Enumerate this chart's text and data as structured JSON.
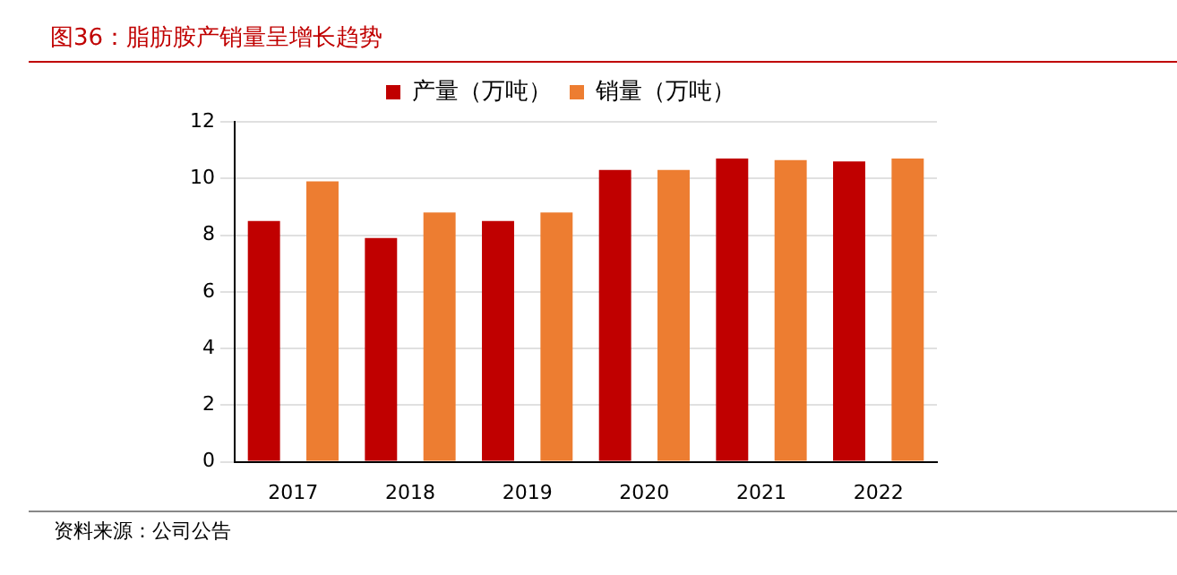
{
  "chart_data": {
    "type": "bar",
    "title": "图36：脂肪胺产销量呈增长趋势",
    "categories": [
      "2017",
      "2018",
      "2019",
      "2020",
      "2021",
      "2022"
    ],
    "series": [
      {
        "name": "产量（万吨）",
        "color": "#c00000",
        "values": [
          8.5,
          7.9,
          8.5,
          10.3,
          10.7,
          10.6
        ]
      },
      {
        "name": "销量（万吨）",
        "color": "#ed7d31",
        "values": [
          9.9,
          8.8,
          8.8,
          10.3,
          10.65,
          10.7
        ]
      }
    ],
    "ylim": [
      0,
      12
    ],
    "yticks": [
      0,
      2,
      4,
      6,
      8,
      10,
      12
    ],
    "grid": "y",
    "legend": "top",
    "annotations": [
      "资料来源：公司公告"
    ]
  }
}
